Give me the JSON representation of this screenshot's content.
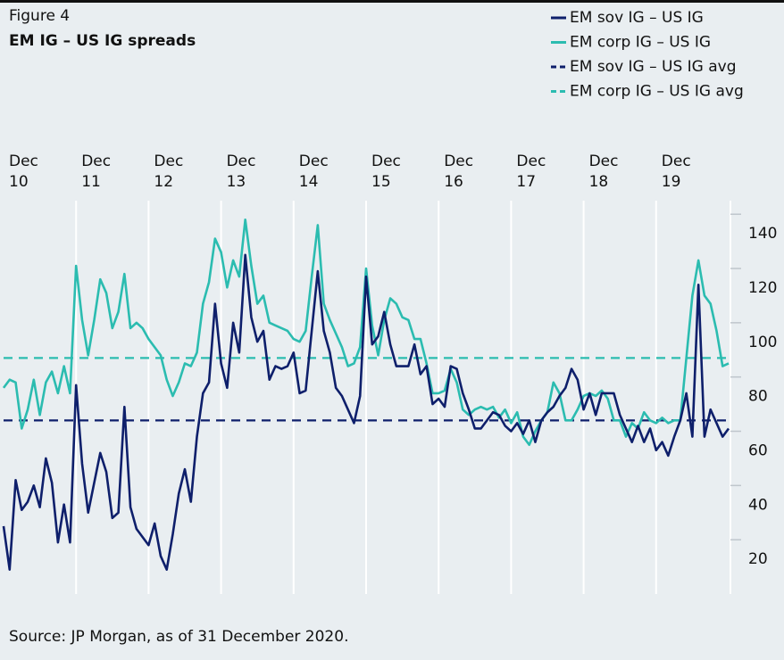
{
  "chart_data": {
    "type": "line",
    "title": "Figure 4",
    "subtitle": "EM IG – US IG spreads",
    "source": "Source: JP Morgan, as of 31 December 2020.",
    "categories": [
      "Dec 10",
      null,
      null,
      null,
      null,
      null,
      null,
      null,
      null,
      null,
      null,
      null,
      "Dec 11",
      null,
      null,
      null,
      null,
      null,
      null,
      null,
      null,
      null,
      null,
      null,
      "Dec 12",
      null,
      null,
      null,
      null,
      null,
      null,
      null,
      null,
      null,
      null,
      null,
      "Dec 13",
      null,
      null,
      null,
      null,
      null,
      null,
      null,
      null,
      null,
      null,
      null,
      "Dec 14",
      null,
      null,
      null,
      null,
      null,
      null,
      null,
      null,
      null,
      null,
      null,
      "Dec 15",
      null,
      null,
      null,
      null,
      null,
      null,
      null,
      null,
      null,
      null,
      null,
      "Dec 16",
      null,
      null,
      null,
      null,
      null,
      null,
      null,
      null,
      null,
      null,
      null,
      "Dec 17",
      null,
      null,
      null,
      null,
      null,
      null,
      null,
      null,
      null,
      null,
      null,
      "Dec 18",
      null,
      null,
      null,
      null,
      null,
      null,
      null,
      null,
      null,
      null,
      null,
      "Dec 19",
      null,
      null,
      null,
      null,
      null,
      null,
      null,
      null,
      null,
      null,
      null,
      null
    ],
    "series": [
      {
        "name": "EM sov IG – US IG",
        "color": "#0e1f6b",
        "values": [
          25,
          9,
          42,
          31,
          34,
          40,
          32,
          50,
          41,
          19,
          33,
          19,
          77,
          48,
          30,
          41,
          52,
          45,
          28,
          30,
          69,
          32,
          24,
          21,
          18,
          26,
          14,
          9,
          22,
          37,
          46,
          34,
          58,
          74,
          78,
          107,
          85,
          76,
          100,
          89,
          125,
          102,
          93,
          97,
          79,
          84,
          83,
          84,
          89,
          74,
          75,
          97,
          119,
          97,
          89,
          76,
          73,
          68,
          63,
          73,
          117,
          92,
          95,
          104,
          92,
          84,
          84,
          84,
          92,
          81,
          84,
          70,
          72,
          69,
          84,
          83,
          74,
          68,
          61,
          61,
          64,
          67,
          66,
          62,
          60,
          63,
          59,
          64,
          56,
          64,
          67,
          69,
          73,
          76,
          83,
          79,
          68,
          74,
          66,
          74,
          74,
          74,
          66,
          61,
          56,
          62,
          56,
          61,
          53,
          56,
          51,
          58,
          64,
          74,
          58,
          114,
          58,
          68,
          63,
          58,
          61
        ]
      },
      {
        "name": "EM corp IG – US IG",
        "color": "#2bbcb0",
        "values": [
          76,
          79,
          78,
          61,
          68,
          79,
          66,
          78,
          82,
          74,
          84,
          74,
          121,
          101,
          88,
          101,
          116,
          111,
          98,
          104,
          118,
          98,
          100,
          98,
          94,
          91,
          88,
          79,
          73,
          78,
          85,
          84,
          89,
          107,
          115,
          131,
          126,
          113,
          123,
          117,
          138,
          121,
          107,
          110,
          100,
          99,
          98,
          97,
          94,
          93,
          97,
          117,
          136,
          107,
          101,
          96,
          91,
          84,
          85,
          91,
          120,
          99,
          88,
          101,
          109,
          107,
          102,
          101,
          94,
          94,
          85,
          74,
          74,
          75,
          83,
          78,
          68,
          66,
          68,
          69,
          68,
          69,
          65,
          68,
          63,
          67,
          58,
          55,
          60,
          64,
          67,
          78,
          74,
          64,
          64,
          68,
          73,
          74,
          73,
          75,
          72,
          64,
          64,
          58,
          63,
          61,
          67,
          64,
          63,
          65,
          63,
          64,
          64,
          87,
          110,
          123,
          110,
          107,
          97,
          84,
          85
        ]
      },
      {
        "name": "EM sov IG – US IG avg",
        "color": "#0e1f6b",
        "dashed": true,
        "value": 64
      },
      {
        "name": "EM corp IG – US IG avg",
        "color": "#2bbcb0",
        "dashed": true,
        "value": 87
      }
    ],
    "ylim": [
      0,
      145
    ],
    "yticks": [
      20,
      40,
      60,
      80,
      100,
      120,
      140
    ],
    "grid": true,
    "legend": "top-right"
  }
}
